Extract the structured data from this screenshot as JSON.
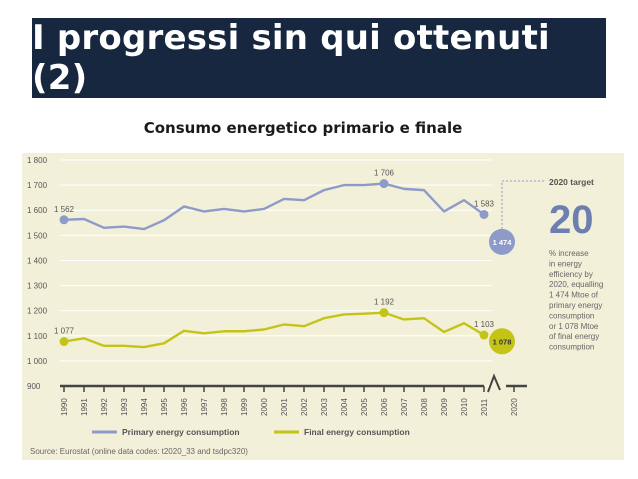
{
  "slide": {
    "title": "I progressi sin qui ottenuti (2)",
    "subtitle": "Consumo energetico primario e finale"
  },
  "chart_data": {
    "type": "line",
    "x": [
      1990,
      1991,
      1992,
      1993,
      1994,
      1995,
      1996,
      1997,
      1998,
      1999,
      2000,
      2001,
      2002,
      2003,
      2004,
      2005,
      2006,
      2007,
      2008,
      2009,
      2010,
      2011
    ],
    "x_tick_labels": [
      "1990",
      "1991",
      "1992",
      "1993",
      "1994",
      "1995",
      "1996",
      "1997",
      "1998",
      "1999",
      "2000",
      "2001",
      "2002",
      "2003",
      "2004",
      "2005",
      "2006",
      "2007",
      "2008",
      "2009",
      "2010",
      "2011",
      "2020"
    ],
    "y_tick_labels": [
      "900",
      "1 000",
      "1 100",
      "1 200",
      "1 300",
      "1 400",
      "1 500",
      "1 600",
      "1 700",
      "1 800"
    ],
    "ylim": [
      900,
      1800
    ],
    "series": [
      {
        "name": "Primary energy consumption",
        "color": "#8e9bc9",
        "values": [
          1562,
          1565,
          1530,
          1535,
          1525,
          1560,
          1615,
          1595,
          1605,
          1595,
          1605,
          1645,
          1640,
          1680,
          1700,
          1700,
          1706,
          1685,
          1680,
          1595,
          1640,
          1583
        ],
        "labels": [
          {
            "year": 1990,
            "value": 1562,
            "text": "1 562"
          },
          {
            "year": 2006,
            "value": 1706,
            "text": "1 706"
          },
          {
            "year": 2011,
            "value": 1583,
            "text": "1 583"
          }
        ]
      },
      {
        "name": "Final energy consumption",
        "color": "#c4c418",
        "values": [
          1077,
          1090,
          1060,
          1060,
          1055,
          1070,
          1120,
          1110,
          1118,
          1118,
          1125,
          1145,
          1138,
          1170,
          1185,
          1188,
          1192,
          1165,
          1170,
          1115,
          1150,
          1103
        ],
        "labels": [
          {
            "year": 1990,
            "value": 1077,
            "text": "1 077"
          },
          {
            "year": 2006,
            "value": 1192,
            "text": "1 192"
          },
          {
            "year": 2011,
            "value": 1103,
            "text": "1 103"
          }
        ]
      }
    ],
    "targets": [
      {
        "year": 2020,
        "value": 1474,
        "text": "1 474",
        "color": "#8e9bc9"
      },
      {
        "year": 2020,
        "value": 1078,
        "text": "1 078",
        "color": "#c4c418"
      }
    ],
    "annotation": {
      "heading": "2020 target",
      "big_number": "20",
      "lines": [
        "% increase",
        "in energy",
        "efficiency by",
        "2020, equalling",
        "1 474 Mtoe of",
        "primary energy",
        "consumption",
        "or 1 078 Mtoe",
        "of final energy",
        "consumption"
      ]
    },
    "source": "Source: Eurostat (online data codes: t2020_33 and tsdpc320)",
    "colors": {
      "background": "#f3f0d9",
      "axis_text": "#555555",
      "grid": "#ffffff"
    }
  }
}
